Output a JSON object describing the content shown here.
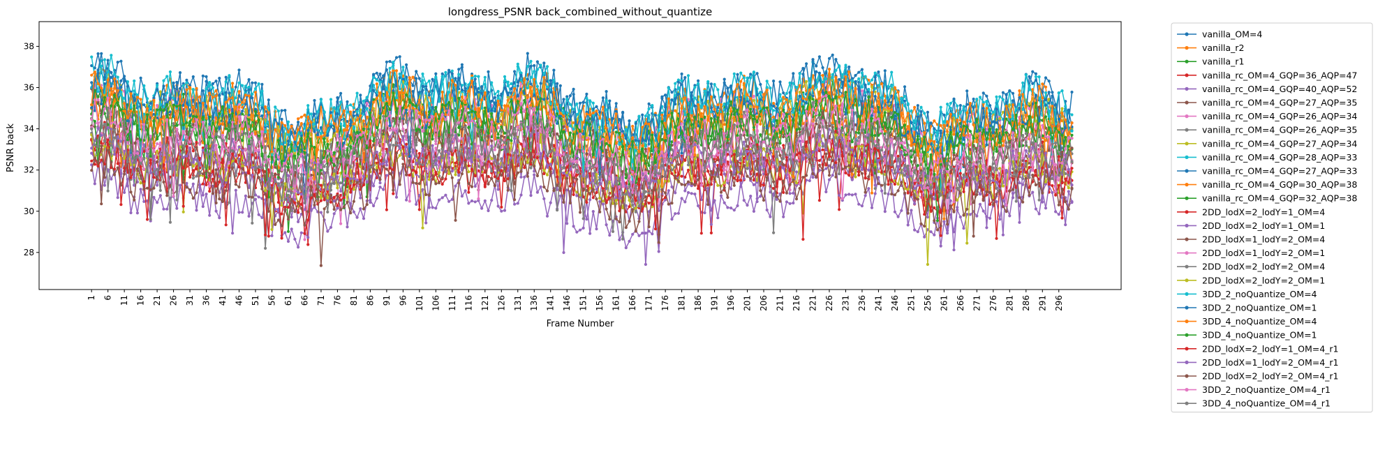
{
  "chart_data": {
    "type": "line",
    "title": "longdress_PSNR back_combined_without_quantize",
    "xlabel": "Frame Number",
    "ylabel": "PSNR back",
    "xlim": [
      -15,
      315
    ],
    "ylim": [
      26.2,
      39.2
    ],
    "xticks": [
      1,
      6,
      11,
      16,
      21,
      26,
      31,
      36,
      41,
      46,
      51,
      56,
      61,
      66,
      71,
      76,
      81,
      86,
      91,
      96,
      101,
      106,
      111,
      116,
      121,
      126,
      131,
      136,
      141,
      146,
      151,
      156,
      161,
      166,
      171,
      176,
      181,
      186,
      191,
      196,
      201,
      206,
      211,
      216,
      221,
      226,
      231,
      236,
      241,
      246,
      251,
      256,
      261,
      266,
      271,
      276,
      281,
      286,
      291,
      296
    ],
    "xtick_labels": [
      "1",
      "6",
      "11",
      "16",
      "21",
      "26",
      "31",
      "36",
      "41",
      "46",
      "51",
      "56",
      "61",
      "66",
      "71",
      "76",
      "81",
      "86",
      "91",
      "96",
      "101",
      "106",
      "111",
      "116",
      "121",
      "126",
      "131",
      "136",
      "141",
      "146",
      "151",
      "156",
      "161",
      "166",
      "171",
      "176",
      "181",
      "186",
      "191",
      "196",
      "201",
      "206",
      "211",
      "216",
      "221",
      "226",
      "231",
      "236",
      "241",
      "246",
      "251",
      "256",
      "261",
      "266",
      "271",
      "276",
      "281",
      "286",
      "291",
      "296"
    ],
    "yticks": [
      28,
      30,
      32,
      34,
      36,
      38
    ],
    "ytick_labels": [
      "28",
      "30",
      "32",
      "34",
      "36",
      "38"
    ],
    "frames": {
      "start": 1,
      "end": 300
    },
    "grid": false,
    "legend_position": "outside-right",
    "series": [
      {
        "name": "vanilla_OM=4",
        "color": "#1f77b4",
        "profile": {
          "base": 35.6,
          "amplitude": 1.5,
          "noise": 1.0
        }
      },
      {
        "name": "vanilla_r2",
        "color": "#ff7f0e",
        "profile": {
          "base": 35.0,
          "amplitude": 1.5,
          "noise": 1.0
        }
      },
      {
        "name": "vanilla_r1",
        "color": "#2ca02c",
        "profile": {
          "base": 34.2,
          "amplitude": 1.5,
          "noise": 1.0
        }
      },
      {
        "name": "vanilla_rc_OM=4_GQP=36_AQP=47",
        "color": "#d62728",
        "profile": {
          "base": 31.8,
          "amplitude": 1.3,
          "noise": 0.9
        }
      },
      {
        "name": "vanilla_rc_OM=4_GQP=40_AQP=52",
        "color": "#9467bd",
        "profile": {
          "base": 30.4,
          "amplitude": 1.4,
          "noise": 0.9
        }
      },
      {
        "name": "vanilla_rc_OM=4_GQP=27_AQP=35",
        "color": "#8c564b",
        "profile": {
          "base": 33.8,
          "amplitude": 1.5,
          "noise": 1.0
        }
      },
      {
        "name": "vanilla_rc_OM=4_GQP=26_AQP=34",
        "color": "#e377c2",
        "profile": {
          "base": 34.4,
          "amplitude": 1.5,
          "noise": 1.0
        }
      },
      {
        "name": "vanilla_rc_OM=4_GQP=26_AQP=35",
        "color": "#7f7f7f",
        "profile": {
          "base": 33.6,
          "amplitude": 1.5,
          "noise": 1.0
        }
      },
      {
        "name": "vanilla_rc_OM=4_GQP=27_AQP=34",
        "color": "#bcbd22",
        "profile": {
          "base": 34.6,
          "amplitude": 1.5,
          "noise": 1.0
        }
      },
      {
        "name": "vanilla_rc_OM=4_GQP=28_AQP=33",
        "color": "#17becf",
        "profile": {
          "base": 35.3,
          "amplitude": 1.5,
          "noise": 1.0
        }
      },
      {
        "name": "vanilla_rc_OM=4_GQP=27_AQP=33",
        "color": "#1f77b4",
        "profile": {
          "base": 35.4,
          "amplitude": 1.5,
          "noise": 1.0
        }
      },
      {
        "name": "vanilla_rc_OM=4_GQP=30_AQP=38",
        "color": "#ff7f0e",
        "profile": {
          "base": 34.0,
          "amplitude": 1.5,
          "noise": 1.0
        }
      },
      {
        "name": "vanilla_rc_OM=4_GQP=32_AQP=38",
        "color": "#2ca02c",
        "profile": {
          "base": 33.6,
          "amplitude": 1.5,
          "noise": 1.0
        }
      },
      {
        "name": "2DD_lodX=2_lodY=1_OM=4",
        "color": "#d62728",
        "profile": {
          "base": 32.4,
          "amplitude": 1.3,
          "noise": 0.9
        }
      },
      {
        "name": "2DD_lodX=2_lodY=1_OM=1",
        "color": "#9467bd",
        "profile": {
          "base": 31.6,
          "amplitude": 1.3,
          "noise": 0.9
        }
      },
      {
        "name": "2DD_lodX=1_lodY=2_OM=4",
        "color": "#8c564b",
        "profile": {
          "base": 32.8,
          "amplitude": 1.3,
          "noise": 0.9
        }
      },
      {
        "name": "2DD_lodX=1_lodY=2_OM=1",
        "color": "#e377c2",
        "profile": {
          "base": 32.6,
          "amplitude": 1.3,
          "noise": 0.9
        }
      },
      {
        "name": "2DD_lodX=2_lodY=2_OM=4",
        "color": "#7f7f7f",
        "profile": {
          "base": 32.2,
          "amplitude": 1.3,
          "noise": 0.9
        }
      },
      {
        "name": "2DD_lodX=2_lodY=2_OM=1",
        "color": "#bcbd22",
        "profile": {
          "base": 32.0,
          "amplitude": 1.3,
          "noise": 0.9
        }
      },
      {
        "name": "3DD_2_noQuantize_OM=4",
        "color": "#17becf",
        "profile": {
          "base": 35.4,
          "amplitude": 1.5,
          "noise": 1.0
        }
      },
      {
        "name": "3DD_2_noQuantize_OM=1",
        "color": "#1f77b4",
        "profile": {
          "base": 34.8,
          "amplitude": 1.5,
          "noise": 1.0
        }
      },
      {
        "name": "3DD_4_noQuantize_OM=4",
        "color": "#ff7f0e",
        "profile": {
          "base": 34.8,
          "amplitude": 1.5,
          "noise": 1.0
        }
      },
      {
        "name": "3DD_4_noQuantize_OM=1",
        "color": "#2ca02c",
        "profile": {
          "base": 34.0,
          "amplitude": 1.5,
          "noise": 1.0
        }
      },
      {
        "name": "2DD_lodX=2_lodY=1_OM=4_r1",
        "color": "#d62728",
        "profile": {
          "base": 31.9,
          "amplitude": 1.3,
          "noise": 0.9
        }
      },
      {
        "name": "2DD_lodX=1_lodY=2_OM=4_r1",
        "color": "#9467bd",
        "profile": {
          "base": 32.4,
          "amplitude": 1.3,
          "noise": 0.9
        }
      },
      {
        "name": "2DD_lodX=2_lodY=2_OM=4_r1",
        "color": "#8c564b",
        "profile": {
          "base": 31.2,
          "amplitude": 1.3,
          "noise": 0.9
        }
      },
      {
        "name": "3DD_2_noQuantize_OM=4_r1",
        "color": "#e377c2",
        "profile": {
          "base": 33.4,
          "amplitude": 1.5,
          "noise": 1.0
        }
      },
      {
        "name": "3DD_4_noQuantize_OM=4_r1",
        "color": "#7f7f7f",
        "profile": {
          "base": 32.8,
          "amplitude": 1.5,
          "noise": 1.0
        }
      }
    ]
  }
}
